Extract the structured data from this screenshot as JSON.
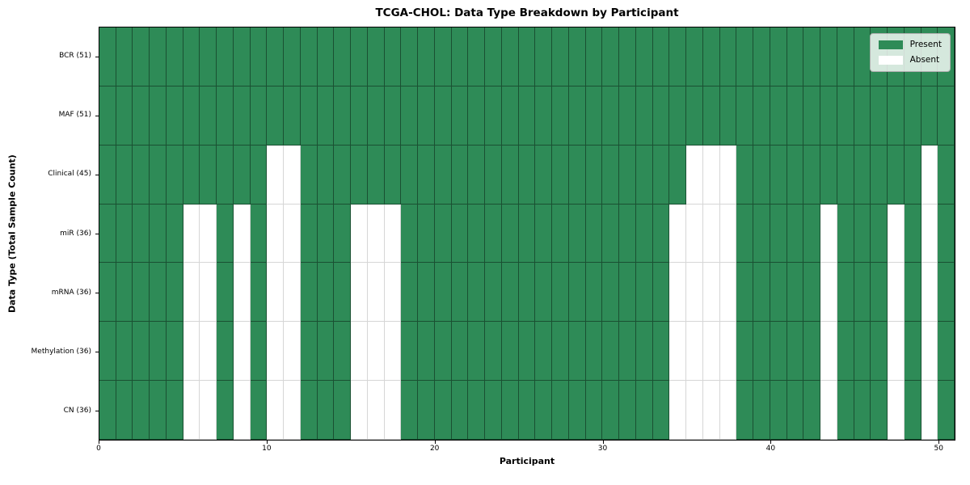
{
  "title": "TCGA-CHOL: Data Type Breakdown by Participant",
  "axes": {
    "xlabel": "Participant",
    "ylabel": "Data Type (Total Sample Count)"
  },
  "legend": {
    "items": [
      {
        "label": "Present",
        "color": "#2e8b57"
      },
      {
        "label": "Absent",
        "color": "#ffffff"
      }
    ]
  },
  "chart_data": {
    "type": "heatmap",
    "title": "TCGA-CHOL: Data Type Breakdown by Participant",
    "xlabel": "Participant",
    "ylabel": "Data Type (Total Sample Count)",
    "x_range": [
      0,
      51
    ],
    "x_ticks": [
      0,
      10,
      20,
      30,
      40,
      50
    ],
    "n_participants": 51,
    "colors": {
      "present": "#2e8b57",
      "absent": "#ffffff"
    },
    "legend_entries": [
      "Present",
      "Absent"
    ],
    "rows": [
      {
        "name": "BCR",
        "label": "BCR (51)",
        "total_present": 51,
        "absent_participants": []
      },
      {
        "name": "MAF",
        "label": "MAF (51)",
        "total_present": 51,
        "absent_participants": []
      },
      {
        "name": "Clinical",
        "label": "Clinical (45)",
        "total_present": 45,
        "absent_participants": [
          10,
          11,
          35,
          36,
          37,
          49
        ]
      },
      {
        "name": "miR",
        "label": "miR (36)",
        "total_present": 36,
        "absent_participants": [
          5,
          6,
          8,
          10,
          11,
          15,
          16,
          17,
          34,
          35,
          36,
          37,
          43,
          47,
          49
        ]
      },
      {
        "name": "mRNA",
        "label": "mRNA (36)",
        "total_present": 36,
        "absent_participants": [
          5,
          6,
          8,
          10,
          11,
          15,
          16,
          17,
          34,
          35,
          36,
          37,
          43,
          47,
          49
        ]
      },
      {
        "name": "Methylation",
        "label": "Methylation (36)",
        "total_present": 36,
        "absent_participants": [
          5,
          6,
          8,
          10,
          11,
          15,
          16,
          17,
          34,
          35,
          36,
          37,
          43,
          47,
          49
        ]
      },
      {
        "name": "CN",
        "label": "CN (36)",
        "total_present": 36,
        "absent_participants": [
          5,
          6,
          8,
          10,
          11,
          15,
          16,
          17,
          34,
          35,
          36,
          37,
          43,
          47,
          49
        ]
      }
    ]
  }
}
